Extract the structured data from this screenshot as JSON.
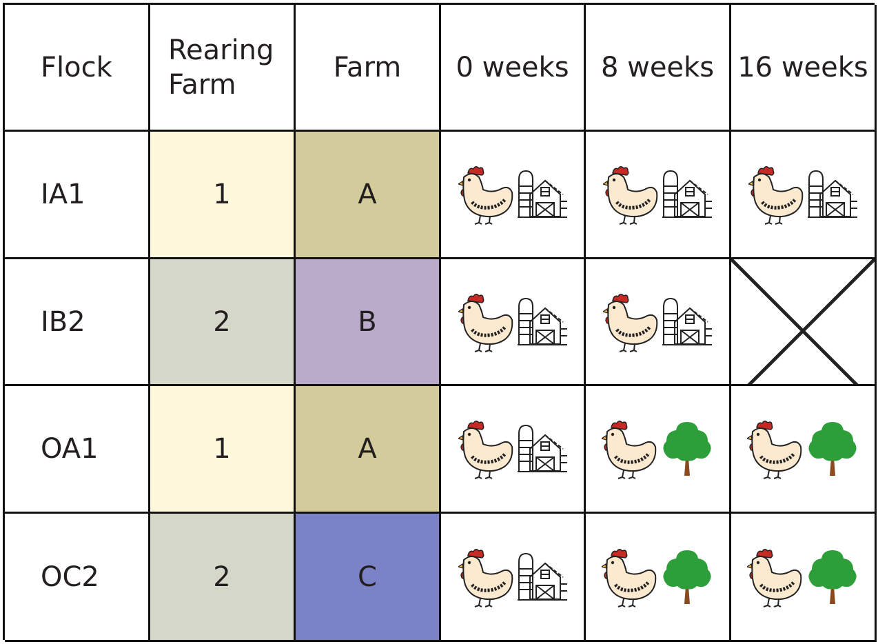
{
  "headers": {
    "flock": "Flock",
    "rearing_line1": "Rearing",
    "rearing_line2": "Farm",
    "farm": "Farm",
    "w0": "0 weeks",
    "w8": "8 weeks",
    "w16": "16 weeks"
  },
  "rows": [
    {
      "flock": "IA1",
      "rearing": "1",
      "farm": "A",
      "rearing_color": "#fff8dd",
      "farm_color": "#d3cb9b",
      "housing": [
        "barn",
        "barn",
        "barn"
      ]
    },
    {
      "flock": "IB2",
      "rearing": "2",
      "farm": "B",
      "rearing_color": "#d5d7c9",
      "farm_color": "#baabcb",
      "housing": [
        "barn",
        "barn",
        "none"
      ]
    },
    {
      "flock": "OA1",
      "rearing": "1",
      "farm": "A",
      "rearing_color": "#fff8dd",
      "farm_color": "#d3cb9b",
      "housing": [
        "barn",
        "tree",
        "tree"
      ]
    },
    {
      "flock": "OC2",
      "rearing": "2",
      "farm": "C",
      "rearing_color": "#d5d7c9",
      "farm_color": "#7b82c6",
      "housing": [
        "barn",
        "tree",
        "tree"
      ]
    }
  ],
  "icons": {
    "chicken": "chicken-icon",
    "barn": "barn-icon",
    "tree": "tree-icon",
    "none": "cross-mark-icon"
  },
  "colors": {
    "border": "#111111",
    "chicken_body": "#fbe9d0",
    "chicken_comb": "#c62a25",
    "tree_green": "#2d9e3a",
    "tree_trunk": "#8c4b1f"
  }
}
